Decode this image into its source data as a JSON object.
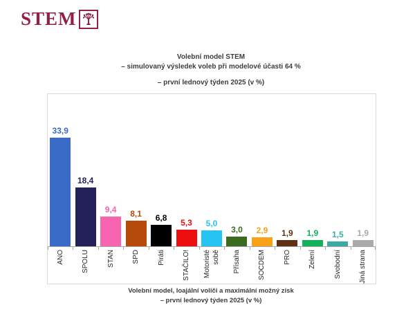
{
  "logo": {
    "text": "STEM",
    "color": "#8e2144"
  },
  "title": {
    "line1": "Volební model STEM",
    "line2": "– simulovaný výsledek voleb při modelové účasti 64 %",
    "line3": "– první lednový týden 2025 (v %)"
  },
  "footer": {
    "line1": "Volební model, loajální voliči a maximální možný zisk",
    "line2": "– první lednový týden 2025 (v %)"
  },
  "chart_data": {
    "type": "bar",
    "title": "Volební model STEM – simulovaný výsledek voleb při modelové účasti 64 % – první lednový týden 2025 (v %)",
    "categories": [
      "ANO",
      "SPOLU",
      "STAN",
      "SPD",
      "Piráti",
      "STAČILO!",
      "Motoristé\nsobě",
      "Přísaha",
      "SOCDEM",
      "PRO",
      "Zelení",
      "Svobodní",
      "Jiná strana"
    ],
    "values": [
      33.9,
      18.4,
      9.4,
      8.1,
      6.8,
      5.3,
      5.0,
      3.0,
      2.9,
      1.9,
      1.9,
      1.5,
      1.9
    ],
    "value_labels": [
      "33,9",
      "18,4",
      "9,4",
      "8,1",
      "6,8",
      "5,3",
      "5,0",
      "3,0",
      "2,9",
      "1,9",
      "1,9",
      "1,5",
      "1,9"
    ],
    "colors": [
      "#3a6bc6",
      "#242159",
      "#f765b0",
      "#b54a0b",
      "#000000",
      "#ed0f0f",
      "#25c4f2",
      "#3b6b1e",
      "#f7a219",
      "#5e3114",
      "#12b25c",
      "#39aba3",
      "#aaaaaa"
    ],
    "xlabel": "",
    "ylabel": "",
    "ylim": [
      0,
      47.5
    ],
    "grid": false,
    "legend": false,
    "axis_color": "#a6a6a6",
    "plot_border_color": "#d9d9d9"
  }
}
